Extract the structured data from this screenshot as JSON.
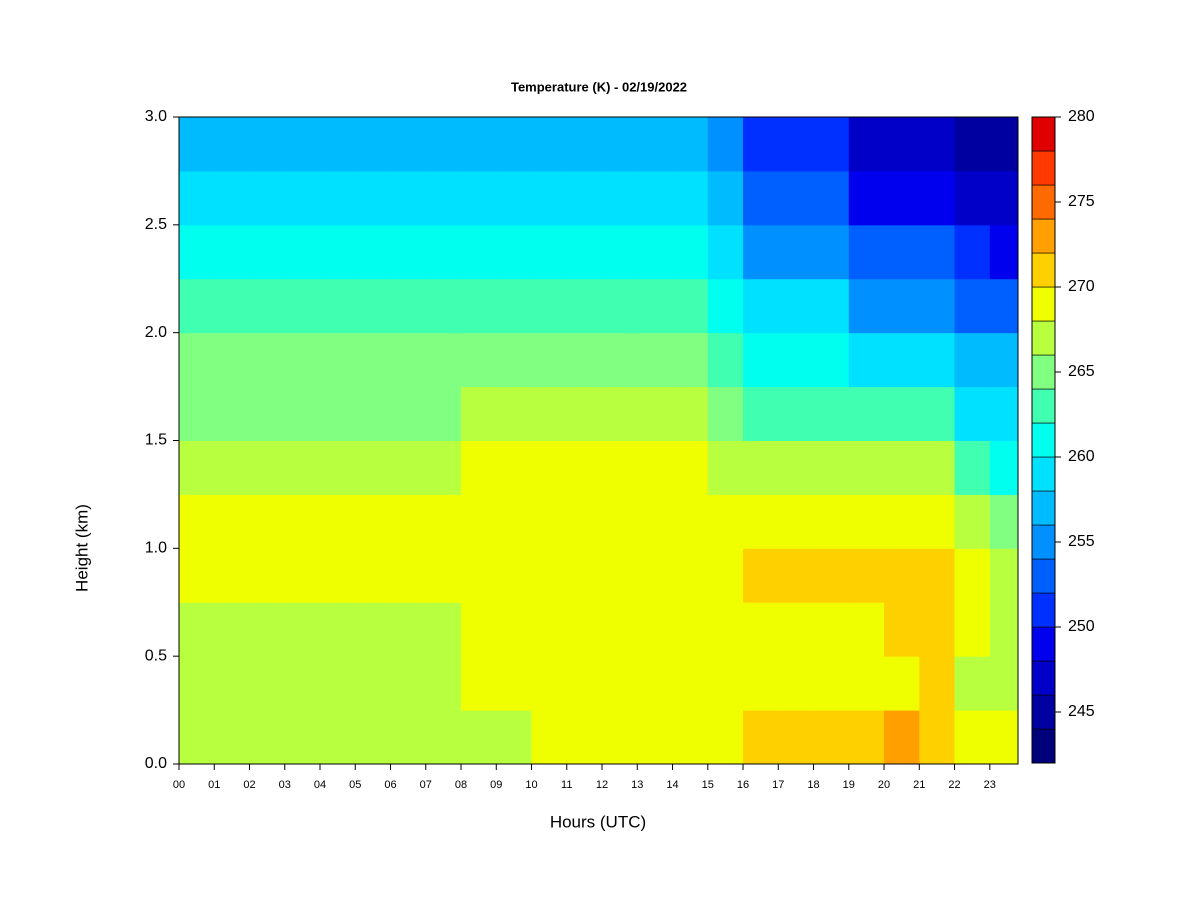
{
  "chart_data": {
    "type": "heatmap",
    "title": "Temperature (K) - 02/19/2022",
    "xlabel": "Hours (UTC)",
    "ylabel": "Height (km)",
    "x": [
      0.5,
      1.5,
      2.5,
      3.5,
      4.5,
      5.5,
      6.5,
      7.5,
      8.5,
      9.5,
      10.5,
      11.5,
      12.5,
      13.5,
      14.5,
      15.5,
      16.5,
      17.5,
      18.5,
      19.5,
      20.5,
      21.5,
      22.5,
      23.5
    ],
    "y": [
      0.125,
      0.375,
      0.625,
      0.875,
      1.125,
      1.375,
      1.625,
      1.875,
      2.125,
      2.375,
      2.625,
      2.875
    ],
    "z": [
      [
        266,
        266,
        266,
        266,
        266,
        266,
        266,
        266,
        266,
        266,
        268,
        268,
        268,
        268,
        268,
        268,
        270,
        270,
        270,
        270,
        272,
        270,
        268,
        268
      ],
      [
        266,
        266,
        266,
        266,
        266,
        266,
        266,
        266,
        268,
        268,
        268,
        268,
        268,
        268,
        268,
        269,
        269,
        269,
        269,
        269,
        269,
        270,
        267,
        267
      ],
      [
        267,
        267,
        267,
        267,
        267,
        267,
        267,
        267,
        269,
        269,
        269,
        269,
        269,
        269,
        269,
        269,
        269,
        269,
        269,
        269,
        271,
        270,
        268,
        267
      ],
      [
        268,
        268,
        268,
        268,
        268,
        268,
        268,
        268,
        269,
        269,
        269,
        269,
        269,
        269,
        269,
        269,
        270,
        270,
        270,
        270,
        270,
        270,
        268,
        266
      ],
      [
        268,
        268,
        268,
        268,
        268,
        268,
        268,
        268,
        269,
        269,
        269,
        269,
        269,
        269,
        269,
        269,
        269,
        269,
        269,
        269,
        269,
        269,
        266,
        265
      ],
      [
        267,
        267,
        267,
        267,
        267,
        267,
        267,
        267,
        268,
        268,
        268,
        268,
        268,
        268,
        268,
        267,
        267,
        267,
        267,
        267,
        267,
        267,
        263,
        261
      ],
      [
        265,
        265,
        265,
        265,
        265,
        265,
        265,
        265,
        266,
        266,
        266,
        266,
        266,
        266,
        266,
        264,
        263,
        263,
        263,
        262,
        262,
        262,
        259,
        258
      ],
      [
        264,
        264,
        264,
        264,
        264,
        264,
        264,
        264,
        264,
        264,
        264,
        264,
        264,
        264,
        264,
        262,
        261,
        261,
        261,
        259,
        259,
        259,
        257,
        256
      ],
      [
        262,
        262,
        262,
        262,
        262,
        262,
        262,
        262,
        262,
        262,
        262,
        262,
        262,
        262,
        262,
        260,
        258,
        258,
        258,
        255,
        255,
        255,
        253,
        253
      ],
      [
        261,
        261,
        261,
        261,
        261,
        261,
        261,
        261,
        260,
        260,
        260,
        260,
        260,
        260,
        260,
        258,
        255,
        255,
        255,
        252,
        252,
        252,
        250,
        249
      ],
      [
        259,
        259,
        259,
        259,
        259,
        259,
        259,
        259,
        258,
        258,
        258,
        258,
        258,
        258,
        258,
        256,
        253,
        253,
        253,
        249,
        249,
        249,
        247,
        246
      ],
      [
        257,
        257,
        257,
        257,
        257,
        257,
        257,
        257,
        256,
        256,
        256,
        256,
        256,
        256,
        256,
        255,
        251,
        251,
        251,
        247,
        247,
        247,
        245,
        244
      ]
    ],
    "cell_width": 1,
    "cell_height": 0.25,
    "xlim": [
      0,
      23.8
    ],
    "ylim": [
      0,
      3
    ],
    "xticks": [
      {
        "value": 0,
        "label": "00"
      },
      {
        "value": 1,
        "label": "01"
      },
      {
        "value": 2,
        "label": "02"
      },
      {
        "value": 3,
        "label": "03"
      },
      {
        "value": 4,
        "label": "04"
      },
      {
        "value": 5,
        "label": "05"
      },
      {
        "value": 6,
        "label": "06"
      },
      {
        "value": 7,
        "label": "07"
      },
      {
        "value": 8,
        "label": "08"
      },
      {
        "value": 9,
        "label": "09"
      },
      10,
      11,
      12,
      13,
      14,
      15,
      16,
      17,
      18,
      19,
      20,
      21,
      22,
      23
    ],
    "yticks": [
      {
        "value": 0,
        "label": "0.0"
      },
      {
        "value": 0.5,
        "label": "0.5"
      },
      {
        "value": 1,
        "label": "1.0"
      },
      {
        "value": 1.5,
        "label": "1.5"
      },
      {
        "value": 2,
        "label": "2.0"
      },
      {
        "value": 2.5,
        "label": "2.5"
      },
      {
        "value": 3,
        "label": "3.0"
      }
    ],
    "colorbar": {
      "levels": [
        242,
        244,
        246,
        248,
        250,
        252,
        254,
        256,
        258,
        260,
        262,
        264,
        266,
        268,
        270,
        272,
        274,
        276,
        278,
        280
      ],
      "colors": [
        "#00007a",
        "#0000a0",
        "#0000c8",
        "#0000ee",
        "#0030ff",
        "#0060ff",
        "#0090ff",
        "#00bcff",
        "#00e0ff",
        "#00ffee",
        "#40ffb0",
        "#80ff80",
        "#b8ff40",
        "#f0ff00",
        "#ffd000",
        "#ffa000",
        "#ff6a00",
        "#ff3a00",
        "#e00000",
        "#a00000"
      ],
      "lim": [
        242,
        280
      ],
      "ticks": [
        245,
        250,
        255,
        260,
        265,
        270,
        275,
        280
      ]
    }
  }
}
